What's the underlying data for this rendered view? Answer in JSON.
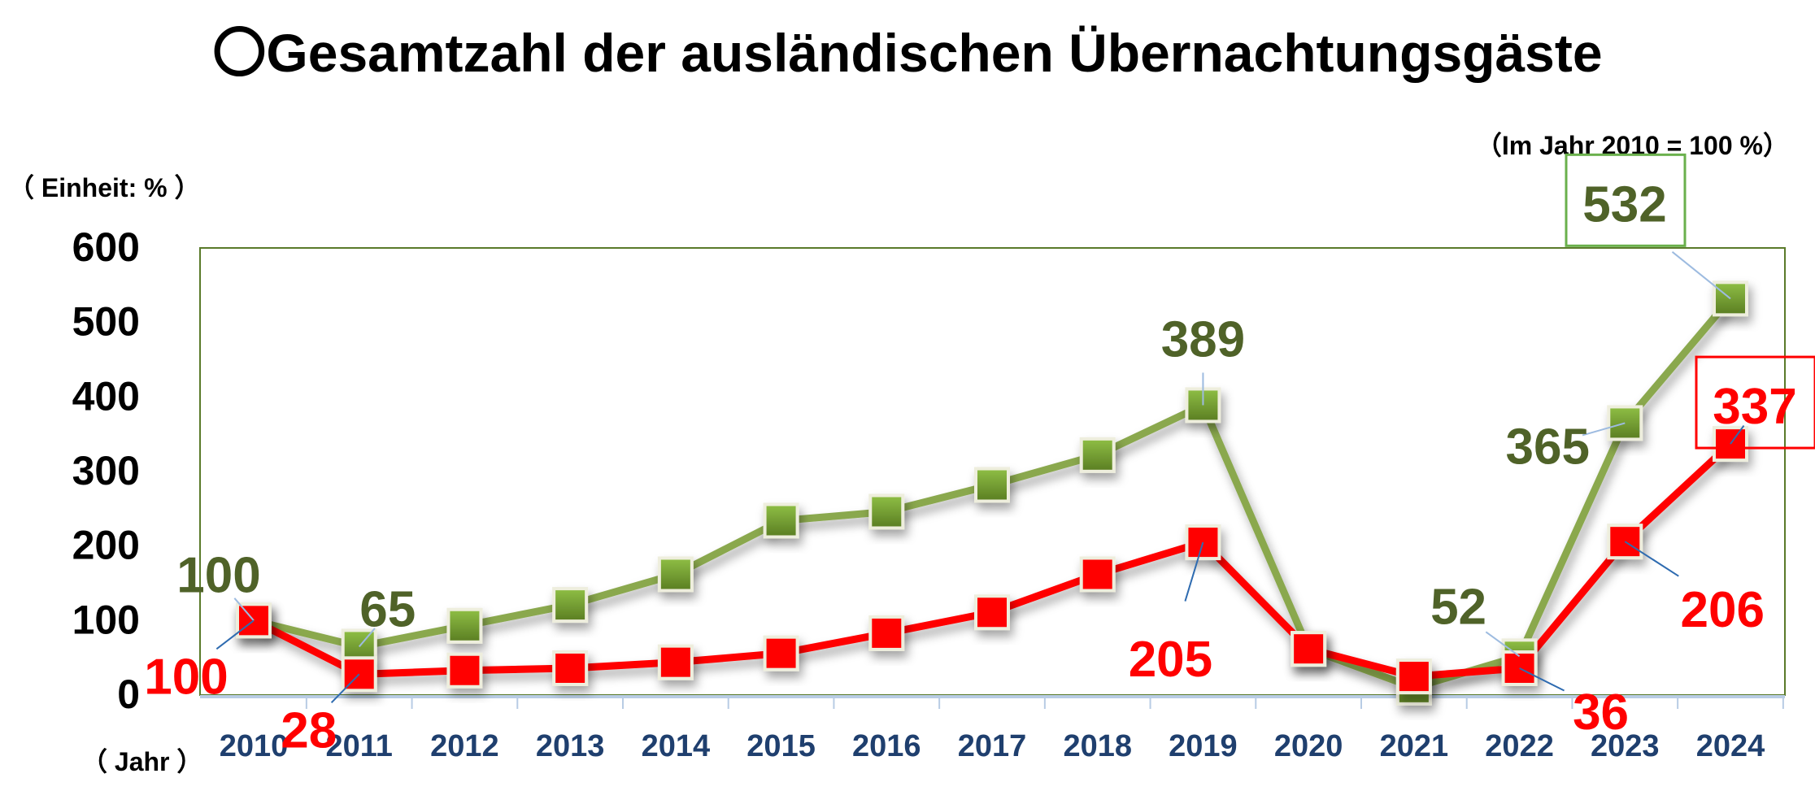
{
  "chart_data": {
    "type": "line",
    "title": "〇Gesamtzahl der ausländischen Übernachtungsgäste",
    "subtitle": "（Im Jahr 2010 = 100 %）",
    "ylabel": "（ Einheit: % ）",
    "xlabel": "（ Jahr ）",
    "ylim": [
      0,
      600
    ],
    "yticks": [
      "0",
      "100",
      "200",
      "300",
      "400",
      "500",
      "600"
    ],
    "grid": false,
    "categories": [
      "2010",
      "2011",
      "2012",
      "2013",
      "2014",
      "2015",
      "2016",
      "2017",
      "2018",
      "2019",
      "2020",
      "2021",
      "2022",
      "2023",
      "2024"
    ],
    "series": [
      {
        "color": "#8aa84e",
        "marker_color": "#6f9a30",
        "label_color": "#4f6228",
        "values": [
          100,
          65,
          93,
          121,
          162,
          234,
          246,
          282,
          322,
          389,
          62,
          10,
          52,
          365,
          532
        ],
        "data_labels": [
          {
            "index": 0,
            "text": "100"
          },
          {
            "index": 1,
            "text": "65"
          },
          {
            "index": 9,
            "text": "389"
          },
          {
            "index": 12,
            "text": "52"
          },
          {
            "index": 13,
            "text": "365"
          },
          {
            "index": 14,
            "text": "532",
            "boxed": true
          }
        ]
      },
      {
        "color": "#ff0000",
        "marker_color": "#ff0000",
        "label_color": "#ff0000",
        "values": [
          100,
          28,
          33,
          36,
          44,
          56,
          83,
          111,
          162,
          205,
          62,
          25,
          36,
          206,
          337
        ],
        "data_labels": [
          {
            "index": 0,
            "text": "100"
          },
          {
            "index": 1,
            "text": "28"
          },
          {
            "index": 9,
            "text": "205"
          },
          {
            "index": 12,
            "text": "36"
          },
          {
            "index": 13,
            "text": "206"
          },
          {
            "index": 14,
            "text": "337",
            "boxed": true
          }
        ]
      }
    ]
  }
}
